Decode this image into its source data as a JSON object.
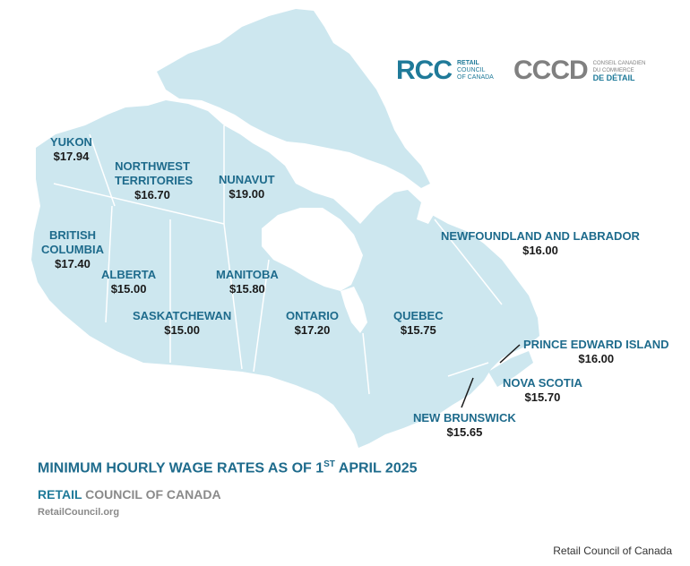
{
  "logos": {
    "rcc": {
      "mark": "RCC",
      "line1": "RETAIL",
      "line2": "COUNCIL",
      "line3": "OF CANADA"
    },
    "cccd": {
      "mark": "CCCD",
      "line1": "CONSEIL CANADIEN",
      "line2": "DU COMMERCE",
      "line3": "DE DÉTAIL"
    }
  },
  "provinces": [
    {
      "name": "YUKON",
      "wage": "$17.94"
    },
    {
      "name": "NORTHWEST TERRITORIES",
      "wage": "$16.70"
    },
    {
      "name": "NUNAVUT",
      "wage": "$19.00"
    },
    {
      "name": "BRITISH COLUMBIA",
      "wage": "$17.40"
    },
    {
      "name": "ALBERTA",
      "wage": "$15.00"
    },
    {
      "name": "SASKATCHEWAN",
      "wage": "$15.00"
    },
    {
      "name": "MANITOBA",
      "wage": "$15.80"
    },
    {
      "name": "ONTARIO",
      "wage": "$17.20"
    },
    {
      "name": "QUEBEC",
      "wage": "$15.75"
    },
    {
      "name": "NEWFOUNDLAND AND LABRADOR",
      "wage": "$16.00"
    },
    {
      "name": "PRINCE EDWARD ISLAND",
      "wage": "$16.00"
    },
    {
      "name": "NOVA SCOTIA",
      "wage": "$15.70"
    },
    {
      "name": "NEW BRUNSWICK",
      "wage": "$15.65"
    }
  ],
  "footer": {
    "title_main": "MINIMUM HOURLY WAGE RATES AS OF 1",
    "title_sup": "ST",
    "title_end": " APRIL 2025",
    "sub_accent": "RETAIL",
    "sub_rest": " COUNCIL OF CANADA",
    "url": "RetailCouncil.org",
    "credit": "Retail Council of Canada"
  },
  "colors": {
    "land": "#cde7ef",
    "label": "#1e6b8c",
    "border": "#ffffff"
  }
}
